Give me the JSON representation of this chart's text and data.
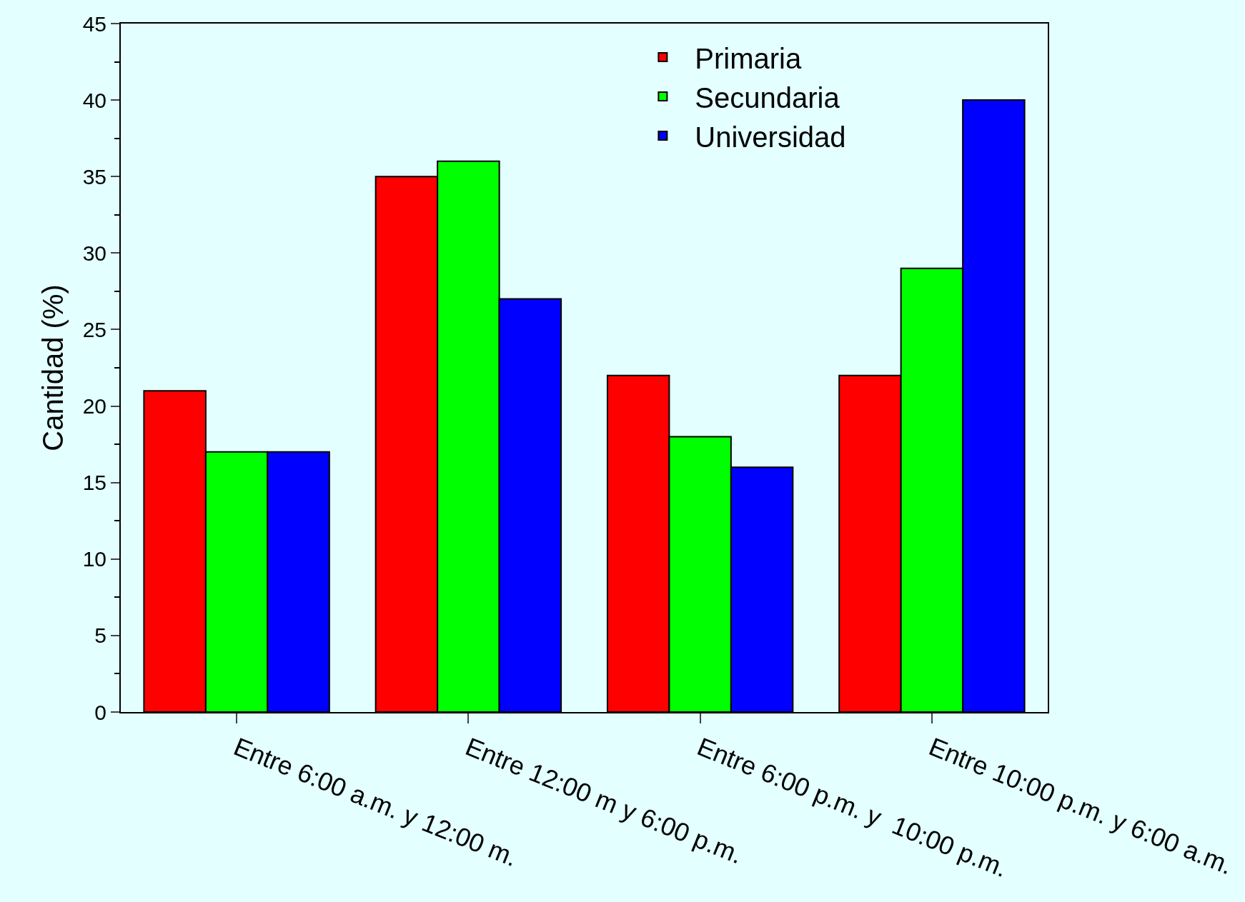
{
  "chart_data": {
    "type": "bar",
    "ylabel": "Cantidad (%)",
    "categories": [
      "Entre 6:00 a.m. y 12:00 m.",
      "Entre 12:00 m y 6:00 p.m.",
      "Entre 6:00 p.m. y  10:00 p.m.",
      "Entre 10:00 p.m. y 6:00 a.m."
    ],
    "series": [
      {
        "name": "Primaria",
        "color": "#ff0000",
        "values": [
          21,
          35,
          22,
          22
        ]
      },
      {
        "name": "Secundaria",
        "color": "#00ff00",
        "values": [
          17,
          36,
          18,
          29
        ]
      },
      {
        "name": "Universidad",
        "color": "#0000ff",
        "values": [
          17,
          27,
          16,
          40
        ]
      }
    ],
    "ylim": [
      0,
      45
    ],
    "yticks": [
      0,
      5,
      10,
      15,
      20,
      25,
      30,
      35,
      40,
      45
    ],
    "grid": false,
    "legend": "top right"
  }
}
